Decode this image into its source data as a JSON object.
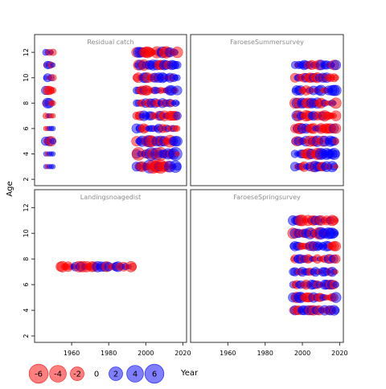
{
  "chart_data": {
    "type": "scatter",
    "subtype": "bubble-residual",
    "ylabel": "Age",
    "xlabel": "Year",
    "xlim": [
      1940,
      2022
    ],
    "ylim": [
      1.5,
      13.4
    ],
    "x_ticks": [
      1960,
      1980,
      2000,
      2020
    ],
    "y_ticks": [
      2,
      4,
      6,
      8,
      10,
      12
    ],
    "colors": {
      "positive": "#0000ff",
      "negative": "#ff0000"
    },
    "panels": [
      {
        "title": "Residual catch",
        "groups": [
          {
            "x_range": [
              1946,
              1950
            ],
            "ages": [
              3,
              4,
              5,
              6,
              7,
              8,
              9,
              10,
              11,
              12
            ],
            "max_abs": [
              0.3,
              0.4,
              4.2,
              0.5,
              0.8,
              3.4,
              3.0,
              1.8,
              2.0,
              1.2
            ]
          },
          {
            "x_range": [
              1995,
              2017
            ],
            "ages": [
              3,
              4,
              5,
              6,
              7,
              8,
              9,
              10,
              11,
              12
            ],
            "max_abs": [
              6.0,
              5.5,
              4.5,
              2.5,
              3.0,
              2.5,
              3.0,
              3.0,
              3.5,
              4.5
            ]
          }
        ]
      },
      {
        "title": "FaroeseSummersurvey",
        "groups": [
          {
            "x_range": [
              1996,
              2018
            ],
            "ages": [
              3,
              4,
              5,
              6,
              7,
              8,
              9,
              10,
              11
            ],
            "max_abs": [
              3.5,
              4.0,
              3.5,
              3.5,
              3.5,
              3.5,
              3.5,
              3.0,
              3.0
            ]
          }
        ]
      },
      {
        "title": "Landingsnoagedist",
        "groups": [
          {
            "x_range": [
              1954,
              1993
            ],
            "ages": [
              7.4
            ],
            "max_abs": [
              3.5
            ]
          }
        ]
      },
      {
        "title": "FaroeseSpringsurvey",
        "groups": [
          {
            "x_range": [
              1995,
              2018
            ],
            "ages": [
              4,
              5,
              6,
              7,
              8,
              9,
              10,
              11
            ],
            "max_abs": [
              3.5,
              3.5,
              2.5,
              2.5,
              2.5,
              3.0,
              4.5,
              3.5
            ]
          }
        ]
      }
    ],
    "legend": {
      "placement": "bottom-left",
      "values": [
        "-6",
        "-4",
        "-2",
        "0",
        "2",
        "4",
        "6"
      ],
      "title": "Year"
    }
  }
}
